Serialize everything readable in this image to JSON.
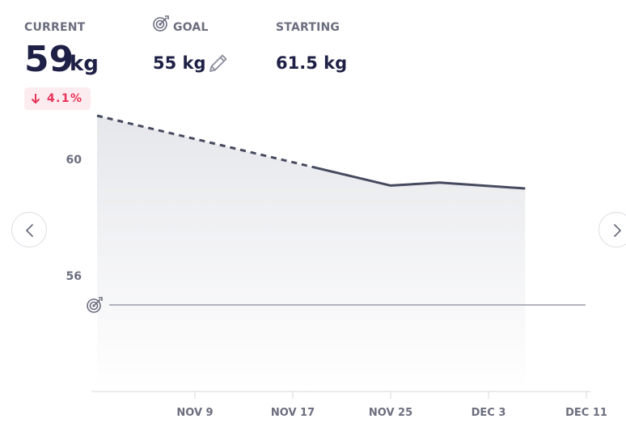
{
  "header": {
    "current_label": "CURRENT",
    "current_value": "59",
    "current_unit": "kg",
    "goal_label": "GOAL",
    "goal_value": "55 kg",
    "starting_label": "STARTING",
    "starting_value": "61.5 kg",
    "change_text": "4.1%",
    "change_direction": "down"
  },
  "icons": {
    "goal": "target-icon",
    "edit": "pencil-icon",
    "change": "arrow-down-icon",
    "prev": "chevron-left-icon",
    "next": "chevron-right-icon"
  },
  "colors": {
    "primary_text": "#1e2145",
    "muted_text": "#6b6e7e",
    "line": "#464a5e",
    "goal_line": "#9a9cab",
    "change_negative": "#e8345a",
    "change_bg": "#fdecef"
  },
  "chart_data": {
    "type": "line",
    "y_tick_labels": [
      "60",
      "56"
    ],
    "x_tick_labels": [
      "NOV 9",
      "NOV 17",
      "NOV 25",
      "DEC 3",
      "DEC 11"
    ],
    "ylim": [
      54,
      61.5
    ],
    "goal_value": 55,
    "series": [
      {
        "x": [
          "2023-11-01",
          "2023-11-05",
          "2023-11-09",
          "2023-11-13",
          "2023-11-17",
          "2023-11-19",
          "2023-11-25",
          "2023-11-29",
          "2023-12-06"
        ],
        "values": [
          61.5,
          61.1,
          60.7,
          60.3,
          59.9,
          59.7,
          59.1,
          59.2,
          59.0
        ],
        "projected_until": "2023-11-19"
      }
    ]
  }
}
